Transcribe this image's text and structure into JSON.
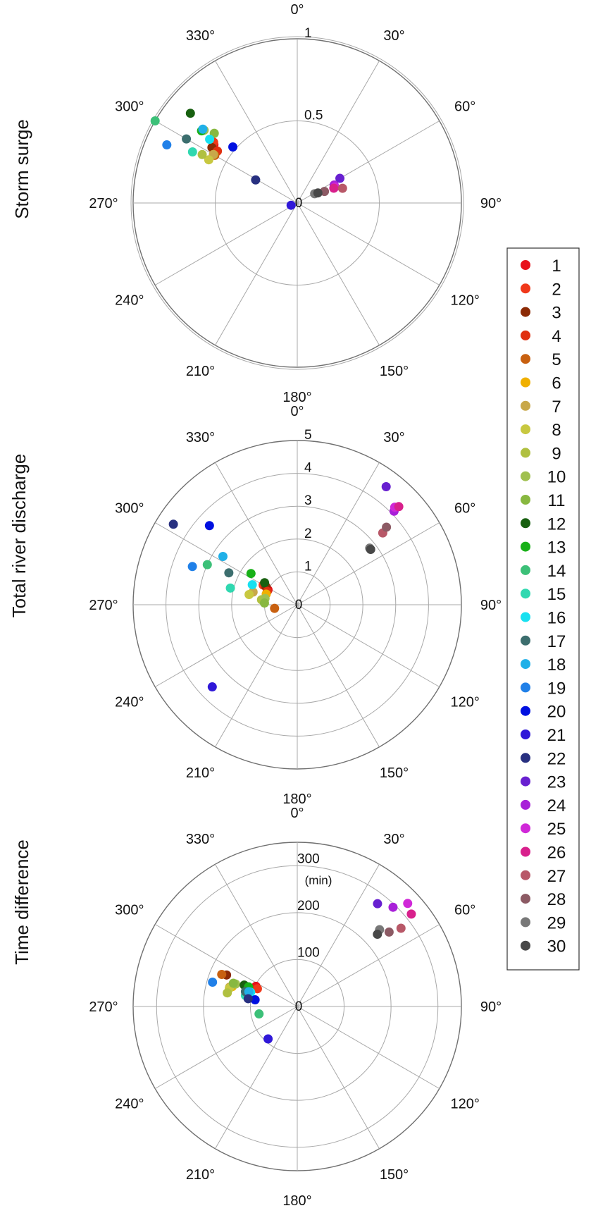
{
  "chart_data": [
    {
      "type": "scatter",
      "projection": "polar",
      "ylabel": "Storm surge",
      "angle_ticks": [
        "0°",
        "30°",
        "60°",
        "90°",
        "120°",
        "150°",
        "180°",
        "210°",
        "240°",
        "270°",
        "300°",
        "330°"
      ],
      "rlim": [
        0,
        1
      ],
      "r_ticks": [
        {
          "value": 0,
          "label": "0"
        },
        {
          "value": 0.5,
          "label": "0.5"
        },
        {
          "value": 1,
          "label": "1"
        }
      ],
      "r_unit": "",
      "grid": true,
      "points": [
        {
          "id": 1,
          "theta": 305,
          "r": 0.62
        },
        {
          "id": 2,
          "theta": 306,
          "r": 0.63
        },
        {
          "id": 3,
          "theta": 303,
          "r": 0.62
        },
        {
          "id": 4,
          "theta": 303,
          "r": 0.58
        },
        {
          "id": 5,
          "theta": 300,
          "r": 0.58
        },
        {
          "id": 6,
          "theta": 300,
          "r": 0.59
        },
        {
          "id": 7,
          "theta": 300,
          "r": 0.59
        },
        {
          "id": 8,
          "theta": 296,
          "r": 0.6
        },
        {
          "id": 9,
          "theta": 297,
          "r": 0.65
        },
        {
          "id": 10,
          "theta": 308,
          "r": 0.72
        },
        {
          "id": 11,
          "theta": 310,
          "r": 0.66
        },
        {
          "id": 12,
          "theta": 310,
          "r": 0.85
        },
        {
          "id": 13,
          "theta": 307,
          "r": 0.73
        },
        {
          "id": 14,
          "theta": 300,
          "r": 1.0
        },
        {
          "id": 15,
          "theta": 296,
          "r": 0.71
        },
        {
          "id": 16,
          "theta": 306,
          "r": 0.66
        },
        {
          "id": 17,
          "theta": 300,
          "r": 0.78
        },
        {
          "id": 18,
          "theta": 308,
          "r": 0.73
        },
        {
          "id": 19,
          "theta": 294,
          "r": 0.87
        },
        {
          "id": 20,
          "theta": 311,
          "r": 0.52
        },
        {
          "id": 21,
          "theta": 250,
          "r": 0.04
        },
        {
          "id": 22,
          "theta": 299,
          "r": 0.29
        },
        {
          "id": 23,
          "theta": 60,
          "r": 0.3
        },
        {
          "id": 24,
          "theta": 64,
          "r": 0.25
        },
        {
          "id": 25,
          "theta": 67,
          "r": 0.25
        },
        {
          "id": 26,
          "theta": 68,
          "r": 0.24
        },
        {
          "id": 27,
          "theta": 72,
          "r": 0.29
        },
        {
          "id": 28,
          "theta": 67,
          "r": 0.18
        },
        {
          "id": 29,
          "theta": 62,
          "r": 0.12
        },
        {
          "id": 30,
          "theta": 64,
          "r": 0.14
        }
      ]
    },
    {
      "type": "scatter",
      "projection": "polar",
      "ylabel": "Total river discharge",
      "angle_ticks": [
        "0°",
        "30°",
        "60°",
        "90°",
        "120°",
        "150°",
        "180°",
        "210°",
        "240°",
        "270°",
        "300°",
        "330°"
      ],
      "rlim": [
        0,
        5
      ],
      "r_ticks": [
        {
          "value": 0,
          "label": "0"
        },
        {
          "value": 1,
          "label": "1"
        },
        {
          "value": 2,
          "label": "2"
        },
        {
          "value": 3,
          "label": "3"
        },
        {
          "value": 4,
          "label": "4"
        },
        {
          "value": 5,
          "label": "5"
        }
      ],
      "r_unit": "",
      "grid": true,
      "points": [
        {
          "id": 1,
          "theta": 297,
          "r": 1.0
        },
        {
          "id": 2,
          "theta": 300,
          "r": 1.2
        },
        {
          "id": 3,
          "theta": 300,
          "r": 1.1
        },
        {
          "id": 4,
          "theta": 294,
          "r": 1.0
        },
        {
          "id": 5,
          "theta": 261,
          "r": 0.7
        },
        {
          "id": 6,
          "theta": 289,
          "r": 1.0
        },
        {
          "id": 7,
          "theta": 286,
          "r": 1.4
        },
        {
          "id": 8,
          "theta": 282,
          "r": 1.5
        },
        {
          "id": 9,
          "theta": 278,
          "r": 1.1
        },
        {
          "id": 10,
          "theta": 281,
          "r": 1.0
        },
        {
          "id": 11,
          "theta": 273,
          "r": 1.0
        },
        {
          "id": 12,
          "theta": 304,
          "r": 1.2
        },
        {
          "id": 13,
          "theta": 304,
          "r": 1.7
        },
        {
          "id": 14,
          "theta": 294,
          "r": 3.0
        },
        {
          "id": 15,
          "theta": 284,
          "r": 2.1
        },
        {
          "id": 16,
          "theta": 294,
          "r": 1.5
        },
        {
          "id": 17,
          "theta": 295,
          "r": 2.3
        },
        {
          "id": 18,
          "theta": 303,
          "r": 2.7
        },
        {
          "id": 19,
          "theta": 290,
          "r": 3.4
        },
        {
          "id": 20,
          "theta": 312,
          "r": 3.6
        },
        {
          "id": 21,
          "theta": 226,
          "r": 3.6
        },
        {
          "id": 22,
          "theta": 303,
          "r": 4.5
        },
        {
          "id": 23,
          "theta": 37,
          "r": 4.5
        },
        {
          "id": 24,
          "theta": 46,
          "r": 4.1
        },
        {
          "id": 25,
          "theta": 45,
          "r": 4.2
        },
        {
          "id": 26,
          "theta": 46,
          "r": 4.3
        },
        {
          "id": 27,
          "theta": 50,
          "r": 3.4
        },
        {
          "id": 28,
          "theta": 49,
          "r": 3.6
        },
        {
          "id": 29,
          "theta": 52,
          "r": 2.8
        },
        {
          "id": 30,
          "theta": 53,
          "r": 2.8
        }
      ]
    },
    {
      "type": "scatter",
      "projection": "polar",
      "ylabel": "Time difference",
      "angle_ticks": [
        "0°",
        "30°",
        "60°",
        "90°",
        "120°",
        "150°",
        "180°",
        "210°",
        "240°",
        "270°",
        "300°",
        "330°"
      ],
      "rlim": [
        0,
        350
      ],
      "r_ticks": [
        {
          "value": 0,
          "label": "0"
        },
        {
          "value": 100,
          "label": "100"
        },
        {
          "value": 200,
          "label": "200"
        },
        {
          "value": 300,
          "label": "300"
        }
      ],
      "r_unit": "(min)",
      "grid": true,
      "points": [
        {
          "id": 1,
          "theta": 296,
          "r": 98
        },
        {
          "id": 2,
          "theta": 294,
          "r": 93
        },
        {
          "id": 3,
          "theta": 294,
          "r": 165
        },
        {
          "id": 4,
          "theta": 291,
          "r": 110
        },
        {
          "id": 5,
          "theta": 293,
          "r": 175
        },
        {
          "id": 6,
          "theta": 287,
          "r": 145
        },
        {
          "id": 7,
          "theta": 286,
          "r": 150
        },
        {
          "id": 8,
          "theta": 285,
          "r": 150
        },
        {
          "id": 9,
          "theta": 281,
          "r": 152
        },
        {
          "id": 10,
          "theta": 290,
          "r": 140
        },
        {
          "id": 11,
          "theta": 290,
          "r": 145
        },
        {
          "id": 12,
          "theta": 292,
          "r": 122
        },
        {
          "id": 13,
          "theta": 292,
          "r": 112
        },
        {
          "id": 14,
          "theta": 259,
          "r": 83
        },
        {
          "id": 15,
          "theta": 282,
          "r": 113
        },
        {
          "id": 16,
          "theta": 287,
          "r": 104
        },
        {
          "id": 17,
          "theta": 286,
          "r": 115
        },
        {
          "id": 18,
          "theta": 287,
          "r": 108
        },
        {
          "id": 19,
          "theta": 286,
          "r": 188
        },
        {
          "id": 20,
          "theta": 279,
          "r": 91
        },
        {
          "id": 21,
          "theta": 222,
          "r": 93
        },
        {
          "id": 22,
          "theta": 279,
          "r": 106
        },
        {
          "id": 23,
          "theta": 38,
          "r": 278
        },
        {
          "id": 24,
          "theta": 44,
          "r": 294
        },
        {
          "id": 25,
          "theta": 47,
          "r": 322
        },
        {
          "id": 26,
          "theta": 51,
          "r": 313
        },
        {
          "id": 27,
          "theta": 53,
          "r": 277
        },
        {
          "id": 28,
          "theta": 51,
          "r": 252
        },
        {
          "id": 29,
          "theta": 47,
          "r": 240
        },
        {
          "id": 30,
          "theta": 48,
          "r": 230
        }
      ]
    }
  ],
  "legend": {
    "placement": "right",
    "items": [
      {
        "label": "1",
        "color": "#e8101a"
      },
      {
        "label": "2",
        "color": "#f0381a"
      },
      {
        "label": "3",
        "color": "#8c2a05"
      },
      {
        "label": "4",
        "color": "#e03010"
      },
      {
        "label": "5",
        "color": "#c86010"
      },
      {
        "label": "6",
        "color": "#f0b000"
      },
      {
        "label": "7",
        "color": "#c8a84a"
      },
      {
        "label": "8",
        "color": "#c8c840"
      },
      {
        "label": "9",
        "color": "#b0c040"
      },
      {
        "label": "10",
        "color": "#a0c050"
      },
      {
        "label": "11",
        "color": "#88b840"
      },
      {
        "label": "12",
        "color": "#186010"
      },
      {
        "label": "13",
        "color": "#18b018"
      },
      {
        "label": "14",
        "color": "#3cc078"
      },
      {
        "label": "15",
        "color": "#30d8b0"
      },
      {
        "label": "16",
        "color": "#18e0f0"
      },
      {
        "label": "17",
        "color": "#3c6e6e"
      },
      {
        "label": "18",
        "color": "#20b0e8"
      },
      {
        "label": "19",
        "color": "#2080e8"
      },
      {
        "label": "20",
        "color": "#0010e0"
      },
      {
        "label": "21",
        "color": "#3018d8"
      },
      {
        "label": "22",
        "color": "#283080"
      },
      {
        "label": "23",
        "color": "#6820d0"
      },
      {
        "label": "24",
        "color": "#a820d8"
      },
      {
        "label": "25",
        "color": "#d028d8"
      },
      {
        "label": "26",
        "color": "#d8208c"
      },
      {
        "label": "27",
        "color": "#b85868"
      },
      {
        "label": "28",
        "color": "#8c5a64"
      },
      {
        "label": "29",
        "color": "#787878"
      },
      {
        "label": "30",
        "color": "#484848"
      }
    ]
  }
}
